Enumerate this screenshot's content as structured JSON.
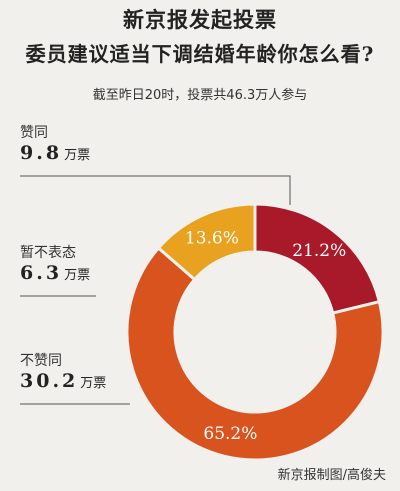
{
  "title_line1": "新京报发起投票",
  "title_line2": "委员建议适当下调结婚年龄你怎么看?",
  "subtitle": "截至昨日20时，投票共46.3万人参与",
  "credit": "新京报制图/高俊夫",
  "unit": "万票",
  "groups": [
    {
      "label": "赞同",
      "value": "9.8"
    },
    {
      "label": "暂不表态",
      "value": "6.3"
    },
    {
      "label": "不赞同",
      "value": "30.2"
    }
  ],
  "chart_data": {
    "type": "pie",
    "donut": true,
    "title": "委员建议适当下调结婚年龄你怎么看?",
    "slices": [
      {
        "label": "赞同",
        "votes": 9.8,
        "percent": 21.2,
        "percent_label": "21.2%",
        "color": "#a8192a"
      },
      {
        "label": "不赞同",
        "votes": 30.2,
        "percent": 65.2,
        "percent_label": "65.2%",
        "color": "#d9531e"
      },
      {
        "label": "暂不表态",
        "votes": 6.3,
        "percent": 13.6,
        "percent_label": "13.6%",
        "color": "#e8a21f"
      }
    ],
    "total": 46.3,
    "legend": "left"
  }
}
